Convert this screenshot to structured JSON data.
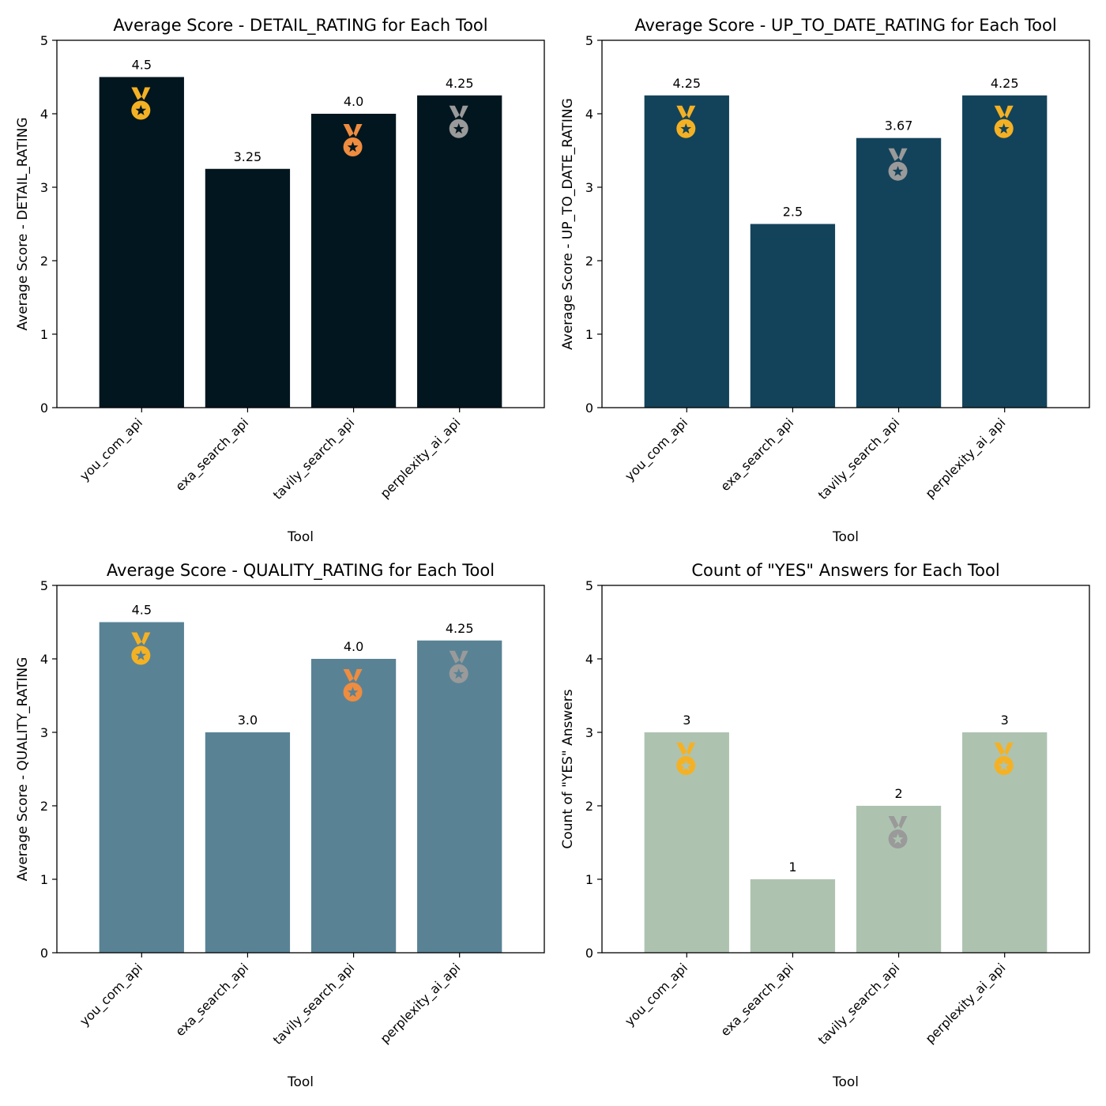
{
  "chart_data": [
    {
      "type": "bar",
      "title": "Average Score - DETAIL_RATING for Each Tool",
      "xlabel": "Tool",
      "ylabel": "Average Score - DETAIL_RATING",
      "ylim": [
        0,
        5
      ],
      "yticks": [
        "0",
        "1",
        "2",
        "3",
        "4",
        "5"
      ],
      "categories": [
        "you_com_api",
        "exa_search_api",
        "tavily_search_api",
        "perplexity_ai_api"
      ],
      "values": [
        4.5,
        3.25,
        4.0,
        4.25
      ],
      "value_labels": [
        "4.5",
        "3.25",
        "4.0",
        "4.25"
      ],
      "bar_color": "#02161f",
      "medals": [
        "gold",
        null,
        "bronze",
        "silver"
      ],
      "medal_star_color": "#02161f"
    },
    {
      "type": "bar",
      "title": "Average Score - UP_TO_DATE_RATING for Each Tool",
      "xlabel": "Tool",
      "ylabel": "Average Score - UP_TO_DATE_RATING",
      "ylim": [
        0,
        5
      ],
      "yticks": [
        "0",
        "1",
        "2",
        "3",
        "4",
        "5"
      ],
      "categories": [
        "you_com_api",
        "exa_search_api",
        "tavily_search_api",
        "perplexity_ai_api"
      ],
      "values": [
        4.25,
        2.5,
        3.67,
        4.25
      ],
      "value_labels": [
        "4.25",
        "2.5",
        "3.67",
        "4.25"
      ],
      "bar_color": "#13435a",
      "medals": [
        "gold",
        null,
        "silver",
        "gold"
      ],
      "medal_star_color": "#13435a"
    },
    {
      "type": "bar",
      "title": "Average Score - QUALITY_RATING for Each Tool",
      "xlabel": "Tool",
      "ylabel": "Average Score - QUALITY_RATING",
      "ylim": [
        0,
        5
      ],
      "yticks": [
        "0",
        "1",
        "2",
        "3",
        "4",
        "5"
      ],
      "categories": [
        "you_com_api",
        "exa_search_api",
        "tavily_search_api",
        "perplexity_ai_api"
      ],
      "values": [
        4.5,
        3.0,
        4.0,
        4.25
      ],
      "value_labels": [
        "4.5",
        "3.0",
        "4.0",
        "4.25"
      ],
      "bar_color": "#598395",
      "medals": [
        "gold",
        null,
        "bronze",
        "silver"
      ],
      "medal_star_color": "#598395"
    },
    {
      "type": "bar",
      "title": "Count of \"YES\" Answers for Each Tool",
      "xlabel": "Tool",
      "ylabel": "Count of \"YES\" Answers",
      "ylim": [
        0,
        5
      ],
      "yticks": [
        "0",
        "1",
        "2",
        "3",
        "4",
        "5"
      ],
      "categories": [
        "you_com_api",
        "exa_search_api",
        "tavily_search_api",
        "perplexity_ai_api"
      ],
      "values": [
        3,
        1,
        2,
        3
      ],
      "value_labels": [
        "3",
        "1",
        "2",
        "3"
      ],
      "bar_color": "#adc3b0",
      "medals": [
        "gold",
        null,
        "silver",
        "gold"
      ],
      "medal_star_color": "#adc3b0"
    }
  ],
  "colors": {
    "gold": "#f5b124",
    "silver": "#9a9a9a",
    "bronze": "#ef8c3f",
    "axis": "#000000"
  }
}
